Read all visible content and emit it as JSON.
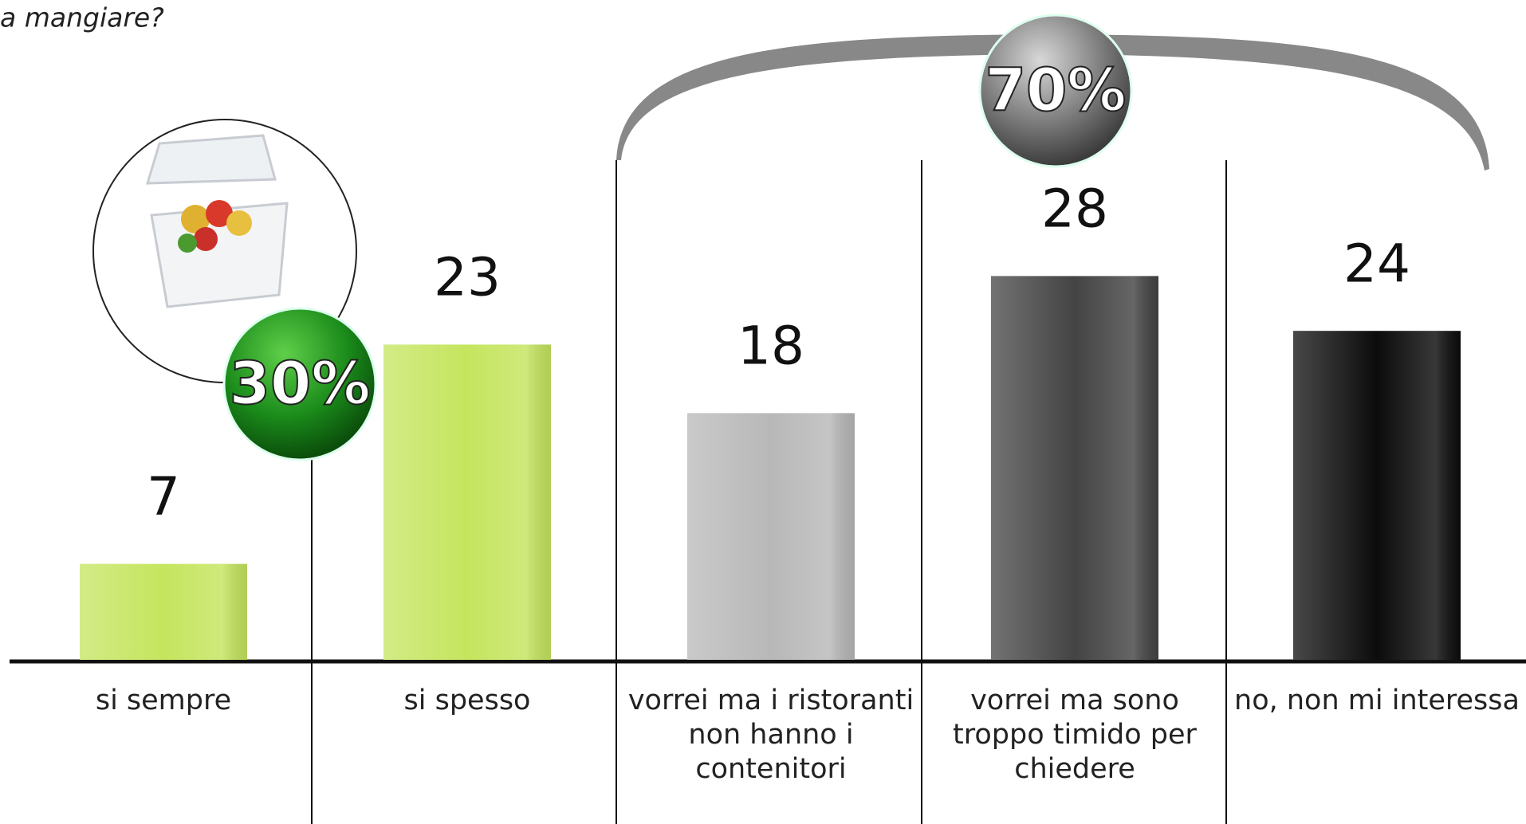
{
  "chart_data": {
    "type": "bar",
    "title": "a mangiare?",
    "categories": [
      "si sempre",
      "si spesso",
      "vorrei ma i ristoranti non hanno i contenitori",
      "vorrei ma sono troppo timido per chiedere",
      "no, non mi interessa"
    ],
    "values": [
      7,
      23,
      18,
      28,
      24
    ],
    "colors": [
      "#c5e55e",
      "#c5e55e",
      "#b8b8b8",
      "#444444",
      "#0c0c0c"
    ],
    "annotations": [
      "30%",
      "70%"
    ]
  }
}
